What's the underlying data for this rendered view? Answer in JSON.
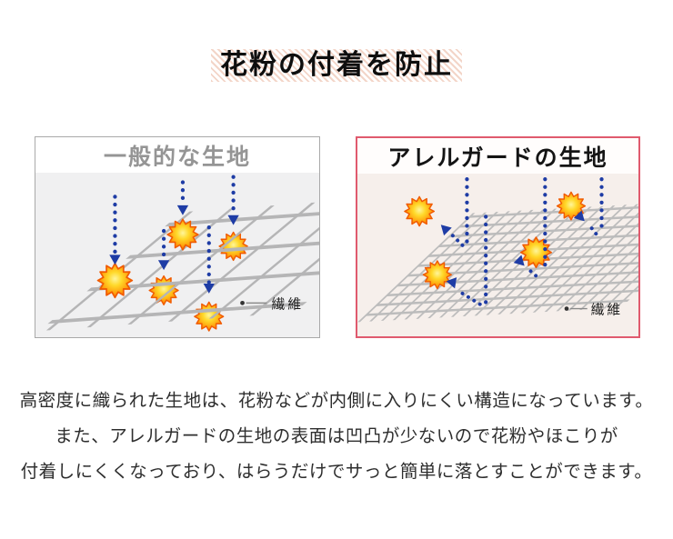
{
  "title": {
    "text": "花粉の付着を防止"
  },
  "comparison": {
    "left_panel": {
      "title": "一般的な生地",
      "fiber_label": "繊維"
    },
    "right_panel": {
      "title": "アレルガードの生地",
      "fiber_label": "繊維"
    }
  },
  "description": {
    "lines": [
      "高密度に織られた生地は、花粉などが内側に入りにくい構造になっています。",
      "また、アレルガードの生地の表面は凹凸が少ないので花粉やほこりが",
      "付着しにくくなっており、はらうだけでサっと簡単に落とすことができます。"
    ]
  },
  "icons": {
    "pollen-icon": "starburst-sun",
    "arrow-down-icon": "blue-dotted-arrow-down",
    "bounce-arrow-icon": "blue-dotted-deflection-arrow",
    "fiber-pointer": "leader-line-with-dot"
  },
  "colors": {
    "arrow_blue": "#1e3ca5",
    "pollen_yellow": "#ffd92a",
    "pollen_orange": "#ff8606",
    "pollen_edge": "#f05a00",
    "mesh_gray": "#b5b5b6",
    "left_panel_border": "#a9a9a9",
    "right_panel_border": "#e05a6e",
    "left_panel_body": "#f0f0f1",
    "right_panel_body": "#f6efeb",
    "title_hatch": "#f3d5c8"
  }
}
